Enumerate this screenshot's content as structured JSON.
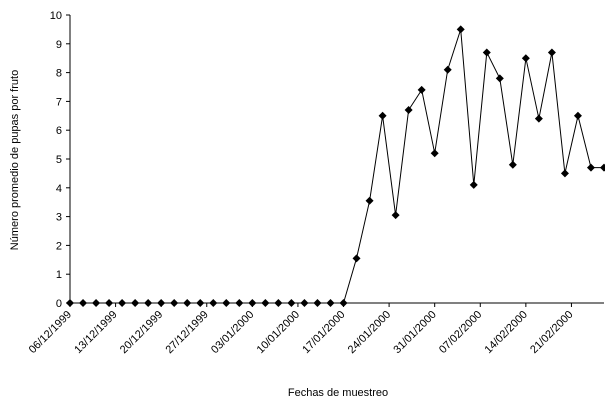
{
  "chart_data": {
    "type": "line",
    "xlabel": "Fechas de muestreo",
    "ylabel": "Número promedio de pupas por fruto",
    "ylim": [
      0,
      10
    ],
    "yticks": [
      0,
      1,
      2,
      3,
      4,
      5,
      6,
      7,
      8,
      9,
      10
    ],
    "grid": false,
    "legend": "none",
    "series": [
      {
        "marker": "diamond",
        "color": "#000000",
        "x": [
          "1999-12-06",
          "1999-12-08",
          "1999-12-10",
          "1999-12-12",
          "1999-12-14",
          "1999-12-16",
          "1999-12-18",
          "1999-12-20",
          "1999-12-22",
          "1999-12-24",
          "1999-12-26",
          "1999-12-28",
          "1999-12-30",
          "2000-01-01",
          "2000-01-03",
          "2000-01-05",
          "2000-01-07",
          "2000-01-09",
          "2000-01-11",
          "2000-01-13",
          "2000-01-15",
          "2000-01-17",
          "2000-01-19",
          "2000-01-21",
          "2000-01-23",
          "2000-01-25",
          "2000-01-27",
          "2000-01-29",
          "2000-01-31",
          "2000-02-02",
          "2000-02-04",
          "2000-02-06",
          "2000-02-08",
          "2000-02-10",
          "2000-02-12",
          "2000-02-14",
          "2000-02-16",
          "2000-02-18",
          "2000-02-20",
          "2000-02-22",
          "2000-02-24",
          "2000-02-26"
        ],
        "values": [
          0,
          0,
          0,
          0,
          0,
          0,
          0,
          0,
          0,
          0,
          0,
          0,
          0,
          0,
          0,
          0,
          0,
          0,
          0,
          0,
          0,
          0,
          1.55,
          3.55,
          6.5,
          3.05,
          6.7,
          7.4,
          5.2,
          8.1,
          9.5,
          4.1,
          8.7,
          7.8,
          4.8,
          8.5,
          6.4,
          8.7,
          4.5,
          6.5,
          4.7,
          4.7
        ]
      }
    ],
    "xticks": [
      {
        "date": "1999-12-06",
        "label": "06/12/1999"
      },
      {
        "date": "1999-12-13",
        "label": "13/12/1999"
      },
      {
        "date": "1999-12-20",
        "label": "20/12/1999"
      },
      {
        "date": "1999-12-27",
        "label": "27/12/1999"
      },
      {
        "date": "2000-01-03",
        "label": "03/01/2000"
      },
      {
        "date": "2000-01-10",
        "label": "10/01/2000"
      },
      {
        "date": "2000-01-17",
        "label": "17/01/2000"
      },
      {
        "date": "2000-01-24",
        "label": "24/01/2000"
      },
      {
        "date": "2000-01-31",
        "label": "31/01/2000"
      },
      {
        "date": "2000-02-07",
        "label": "07/02/2000"
      },
      {
        "date": "2000-02-14",
        "label": "14/02/2000"
      },
      {
        "date": "2000-02-21",
        "label": "21/02/2000"
      }
    ],
    "xlim": [
      "1999-12-06",
      "2000-02-26"
    ]
  }
}
